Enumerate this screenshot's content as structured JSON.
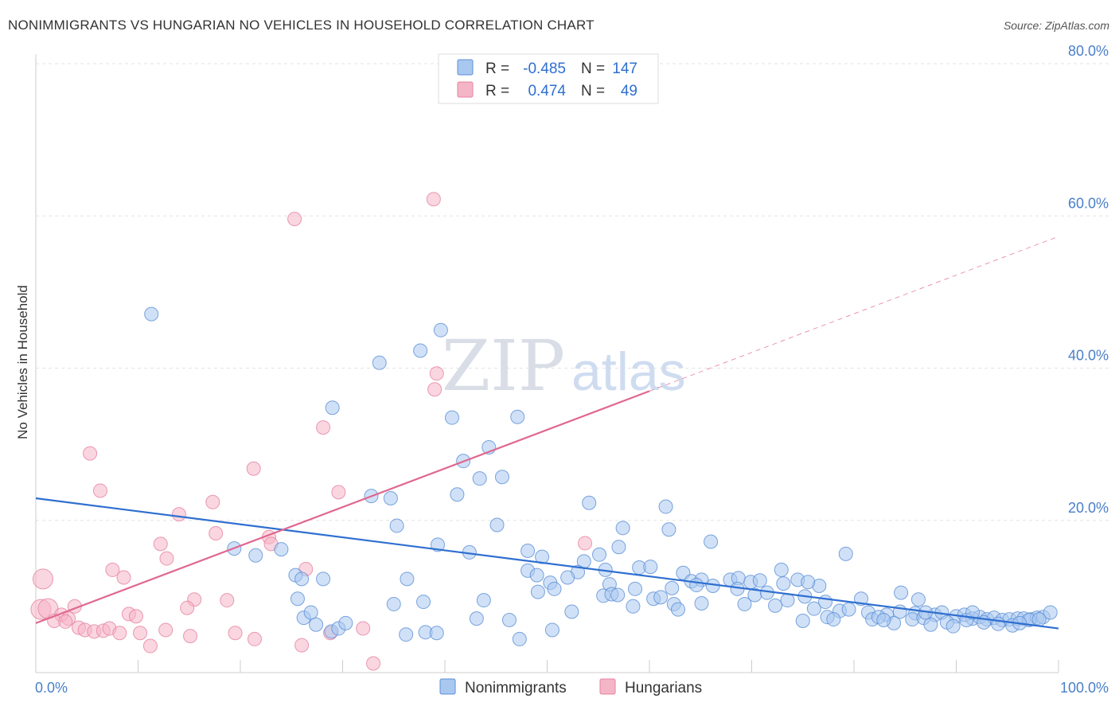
{
  "header": {
    "title": "NONIMMIGRANTS VS HUNGARIAN NO VEHICLES IN HOUSEHOLD CORRELATION CHART",
    "source": "Source: ZipAtlas.com"
  },
  "watermark": {
    "zip": "ZIP",
    "atlas": "atlas"
  },
  "legend": {
    "rows": [
      {
        "r_label": "R =",
        "r_value": "-0.485",
        "n_label": "N =",
        "n_value": "147",
        "color": "#a9c8f0"
      },
      {
        "r_label": "R =",
        "r_value": "0.474",
        "n_label": "N =",
        "n_value": "49",
        "color": "#f5b5c8"
      }
    ]
  },
  "bottom_legend": [
    {
      "name": "Nonimmigrants",
      "color": "#a9c8f0"
    },
    {
      "name": "Hungarians",
      "color": "#f5b5c8"
    }
  ],
  "chart_data": {
    "type": "scatter",
    "title": "NONIMMIGRANTS VS HUNGARIAN NO VEHICLES IN HOUSEHOLD CORRELATION CHART",
    "xlabel": "",
    "ylabel": "No Vehicles in Household",
    "xlim": [
      0,
      100
    ],
    "ylim": [
      0,
      80
    ],
    "x_tick_labels": [
      "0.0%",
      "100.0%"
    ],
    "y_ticks": [
      20,
      40,
      60,
      80
    ],
    "y_tick_labels": [
      "20.0%",
      "40.0%",
      "60.0%",
      "80.0%"
    ],
    "grid": true,
    "legend_position": "top-center",
    "colors": {
      "nonimmigrants_fill": "#a9c8f0",
      "nonimmigrants_stroke": "#5b8fd6",
      "nonimmigrants_line": "#2f6fd0",
      "hungarians_fill": "#f5b5c8",
      "hungarians_stroke": "#e5829f",
      "hungarians_line": "#e06890"
    },
    "series": [
      {
        "name": "Nonimmigrants",
        "trend": {
          "x": [
            0,
            100
          ],
          "y": [
            22.9,
            5.8
          ],
          "dashed_from": null
        },
        "points": [
          [
            11.3,
            47.1
          ],
          [
            33.6,
            40.7
          ],
          [
            37.6,
            42.3
          ],
          [
            39.6,
            45.0
          ],
          [
            29.0,
            34.8
          ],
          [
            40.7,
            33.5
          ],
          [
            47.1,
            33.6
          ],
          [
            44.3,
            29.6
          ],
          [
            41.8,
            27.8
          ],
          [
            43.4,
            25.5
          ],
          [
            45.6,
            25.7
          ],
          [
            41.2,
            23.4
          ],
          [
            32.8,
            23.2
          ],
          [
            34.7,
            22.9
          ],
          [
            54.1,
            22.3
          ],
          [
            61.6,
            21.8
          ],
          [
            35.3,
            19.3
          ],
          [
            45.1,
            19.4
          ],
          [
            57.4,
            19.0
          ],
          [
            61.9,
            18.8
          ],
          [
            66.0,
            17.2
          ],
          [
            19.4,
            16.3
          ],
          [
            21.5,
            15.4
          ],
          [
            24.0,
            16.2
          ],
          [
            39.3,
            16.8
          ],
          [
            42.4,
            15.8
          ],
          [
            48.1,
            16.0
          ],
          [
            49.5,
            15.2
          ],
          [
            57.0,
            16.5
          ],
          [
            53.6,
            14.6
          ],
          [
            55.1,
            15.5
          ],
          [
            59.0,
            13.8
          ],
          [
            60.1,
            13.9
          ],
          [
            48.1,
            13.4
          ],
          [
            53.0,
            13.2
          ],
          [
            55.7,
            13.5
          ],
          [
            63.3,
            13.1
          ],
          [
            72.9,
            13.5
          ],
          [
            79.2,
            15.6
          ],
          [
            25.4,
            12.8
          ],
          [
            26.0,
            12.3
          ],
          [
            28.1,
            12.3
          ],
          [
            36.3,
            12.3
          ],
          [
            49.0,
            12.8
          ],
          [
            50.3,
            11.8
          ],
          [
            52.0,
            12.5
          ],
          [
            56.1,
            11.6
          ],
          [
            64.1,
            12.0
          ],
          [
            65.1,
            12.2
          ],
          [
            67.9,
            12.2
          ],
          [
            68.7,
            12.4
          ],
          [
            69.9,
            11.9
          ],
          [
            70.8,
            12.1
          ],
          [
            74.5,
            12.2
          ],
          [
            73.1,
            11.7
          ],
          [
            76.6,
            11.4
          ],
          [
            75.5,
            11.9
          ],
          [
            68.6,
            11.0
          ],
          [
            58.6,
            11.0
          ],
          [
            62.2,
            11.1
          ],
          [
            64.6,
            11.5
          ],
          [
            66.2,
            11.4
          ],
          [
            49.1,
            10.6
          ],
          [
            50.7,
            11.0
          ],
          [
            55.5,
            10.1
          ],
          [
            56.3,
            10.3
          ],
          [
            60.4,
            9.7
          ],
          [
            61.1,
            9.9
          ],
          [
            56.9,
            10.2
          ],
          [
            70.3,
            10.2
          ],
          [
            71.5,
            10.5
          ],
          [
            73.5,
            9.5
          ],
          [
            75.2,
            10.0
          ],
          [
            77.2,
            9.3
          ],
          [
            80.7,
            9.7
          ],
          [
            25.6,
            9.7
          ],
          [
            35.0,
            9.0
          ],
          [
            37.9,
            9.3
          ],
          [
            43.8,
            9.5
          ],
          [
            58.4,
            8.7
          ],
          [
            62.4,
            9.0
          ],
          [
            65.1,
            9.1
          ],
          [
            69.3,
            9.0
          ],
          [
            72.3,
            8.8
          ],
          [
            76.1,
            8.4
          ],
          [
            78.6,
            8.1
          ],
          [
            79.5,
            8.3
          ],
          [
            81.4,
            7.9
          ],
          [
            83.2,
            7.6
          ],
          [
            84.5,
            8.0
          ],
          [
            86.0,
            7.8
          ],
          [
            87.9,
            7.6
          ],
          [
            88.6,
            7.9
          ],
          [
            90.0,
            7.4
          ],
          [
            90.8,
            7.6
          ],
          [
            91.6,
            7.1
          ],
          [
            92.3,
            7.3
          ],
          [
            93.0,
            7.0
          ],
          [
            93.7,
            7.2
          ],
          [
            94.5,
            6.9
          ],
          [
            95.2,
            7.0
          ],
          [
            96.0,
            7.1
          ],
          [
            96.6,
            7.1
          ],
          [
            97.3,
            7.0
          ],
          [
            97.9,
            7.2
          ],
          [
            98.5,
            7.3
          ],
          [
            99.2,
            7.9
          ],
          [
            26.2,
            7.2
          ],
          [
            26.9,
            7.9
          ],
          [
            27.4,
            6.3
          ],
          [
            28.9,
            5.4
          ],
          [
            29.6,
            5.8
          ],
          [
            30.3,
            6.5
          ],
          [
            36.2,
            5.0
          ],
          [
            38.1,
            5.3
          ],
          [
            39.2,
            5.2
          ],
          [
            43.1,
            7.1
          ],
          [
            46.3,
            6.9
          ],
          [
            47.3,
            4.4
          ],
          [
            50.5,
            5.6
          ],
          [
            52.4,
            8.0
          ],
          [
            62.8,
            8.3
          ],
          [
            75.0,
            6.8
          ],
          [
            77.4,
            7.3
          ],
          [
            78.0,
            7.0
          ],
          [
            81.8,
            7.0
          ],
          [
            82.4,
            7.3
          ],
          [
            83.9,
            6.5
          ],
          [
            85.7,
            7.0
          ],
          [
            86.8,
            7.2
          ],
          [
            87.5,
            6.3
          ],
          [
            89.1,
            6.6
          ],
          [
            89.7,
            6.1
          ],
          [
            91.0,
            6.9
          ],
          [
            92.7,
            6.6
          ],
          [
            94.1,
            6.4
          ],
          [
            95.5,
            6.2
          ],
          [
            97.1,
            6.9
          ],
          [
            98.1,
            7.0
          ],
          [
            84.6,
            10.5
          ],
          [
            86.3,
            9.6
          ],
          [
            87.0,
            7.9
          ],
          [
            91.6,
            7.9
          ],
          [
            82.9,
            6.9
          ],
          [
            96.2,
            6.5
          ]
        ]
      },
      {
        "name": "Hungarians",
        "trend": {
          "x": [
            0,
            100
          ],
          "y": [
            6.5,
            57.3
          ],
          "dashed_from": 60
        },
        "points": [
          [
            38.9,
            62.2
          ],
          [
            25.3,
            59.6
          ],
          [
            39.2,
            39.3
          ],
          [
            39.0,
            37.2
          ],
          [
            28.1,
            32.2
          ],
          [
            5.3,
            28.8
          ],
          [
            21.3,
            26.8
          ],
          [
            6.3,
            23.9
          ],
          [
            29.6,
            23.7
          ],
          [
            17.3,
            22.4
          ],
          [
            14.0,
            20.8
          ],
          [
            17.6,
            18.3
          ],
          [
            22.8,
            17.8
          ],
          [
            12.2,
            16.9
          ],
          [
            23.0,
            16.9
          ],
          [
            12.8,
            15.0
          ],
          [
            53.7,
            17.0
          ],
          [
            7.5,
            13.5
          ],
          [
            26.4,
            13.6
          ],
          [
            8.6,
            12.5
          ],
          [
            0.7,
            12.3
          ],
          [
            15.5,
            9.6
          ],
          [
            18.7,
            9.5
          ],
          [
            0.5,
            8.3
          ],
          [
            1.2,
            8.4
          ],
          [
            3.8,
            8.7
          ],
          [
            9.1,
            7.7
          ],
          [
            9.8,
            7.4
          ],
          [
            14.8,
            8.5
          ],
          [
            2.5,
            7.6
          ],
          [
            3.2,
            7.1
          ],
          [
            1.8,
            6.8
          ],
          [
            2.9,
            6.7
          ],
          [
            4.2,
            5.9
          ],
          [
            4.8,
            5.6
          ],
          [
            5.7,
            5.4
          ],
          [
            6.6,
            5.5
          ],
          [
            7.2,
            5.8
          ],
          [
            8.2,
            5.2
          ],
          [
            10.2,
            5.2
          ],
          [
            11.2,
            3.5
          ],
          [
            12.7,
            5.6
          ],
          [
            15.1,
            4.8
          ],
          [
            19.5,
            5.2
          ],
          [
            21.4,
            4.4
          ],
          [
            26.0,
            3.6
          ],
          [
            28.8,
            5.2
          ],
          [
            32.0,
            5.8
          ],
          [
            33.0,
            1.2
          ]
        ]
      }
    ]
  }
}
